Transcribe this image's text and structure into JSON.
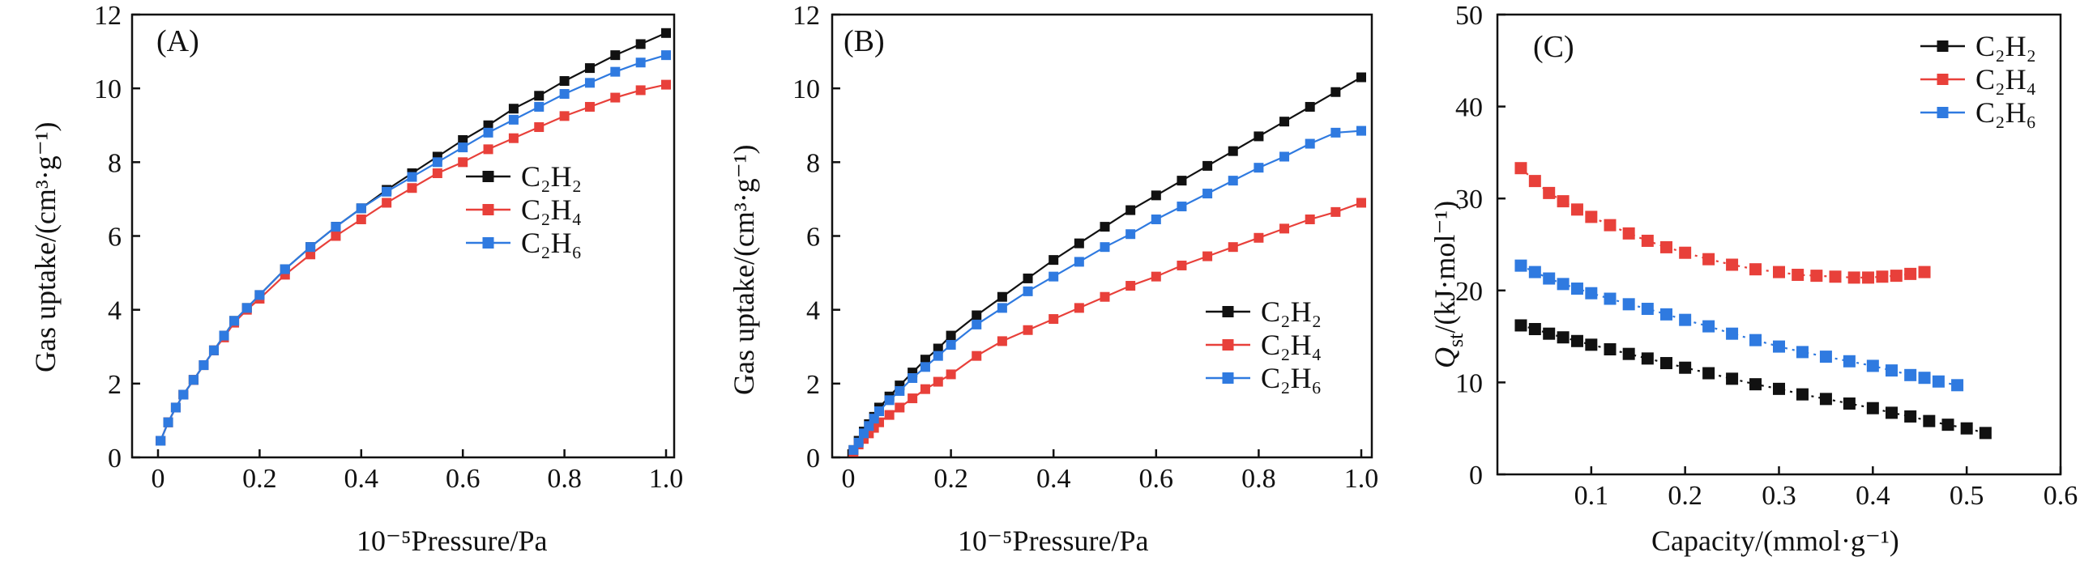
{
  "colors": {
    "C2H2": "#111111",
    "C2H4": "#e8403a",
    "C2H6": "#2f7ae0"
  },
  "chart_data": [
    {
      "type": "line",
      "panel_label": "(A)",
      "xlabel": "10⁻⁵Pressure/Pa",
      "ylabel": "Gas uptake/(cm³·g⁻¹)",
      "xlim": [
        0,
        1.0
      ],
      "ylim": [
        0,
        12
      ],
      "xticks": [
        "0",
        "0.2",
        "0.4",
        "0.6",
        "0.8",
        "1.0"
      ],
      "yticks": [
        "0",
        "2",
        "4",
        "6",
        "8",
        "10",
        "12"
      ],
      "legend_position": "center-right",
      "x": [
        0.005,
        0.02,
        0.035,
        0.05,
        0.07,
        0.09,
        0.11,
        0.13,
        0.15,
        0.175,
        0.2,
        0.25,
        0.3,
        0.35,
        0.4,
        0.45,
        0.5,
        0.55,
        0.6,
        0.65,
        0.7,
        0.75,
        0.8,
        0.85,
        0.9,
        0.95,
        1.0
      ],
      "series": [
        {
          "name": "C₂H₂",
          "key": "C2H2",
          "values": [
            0.45,
            0.95,
            1.35,
            1.7,
            2.1,
            2.5,
            2.9,
            3.3,
            3.7,
            4.05,
            4.4,
            5.1,
            5.7,
            6.25,
            6.75,
            7.25,
            7.7,
            8.15,
            8.6,
            9.0,
            9.45,
            9.8,
            10.2,
            10.55,
            10.9,
            11.2,
            11.5
          ]
        },
        {
          "name": "C₂H₄",
          "key": "C2H4",
          "values": [
            0.45,
            0.95,
            1.35,
            1.7,
            2.1,
            2.5,
            2.9,
            3.25,
            3.65,
            4.0,
            4.3,
            4.95,
            5.5,
            6.0,
            6.45,
            6.9,
            7.3,
            7.7,
            8.0,
            8.35,
            8.65,
            8.95,
            9.25,
            9.5,
            9.75,
            9.95,
            10.1
          ]
        },
        {
          "name": "C₂H₆",
          "key": "C2H6",
          "values": [
            0.45,
            0.95,
            1.35,
            1.7,
            2.1,
            2.5,
            2.9,
            3.3,
            3.7,
            4.05,
            4.4,
            5.1,
            5.7,
            6.25,
            6.75,
            7.2,
            7.6,
            8.0,
            8.4,
            8.8,
            9.15,
            9.5,
            9.85,
            10.15,
            10.45,
            10.7,
            10.9
          ]
        }
      ]
    },
    {
      "type": "line",
      "panel_label": "(B)",
      "xlabel": "10⁻⁵Pressure/Pa",
      "ylabel": "Gas uptake/(cm³·g⁻¹)",
      "xlim": [
        0,
        1.0
      ],
      "ylim": [
        0,
        12
      ],
      "xticks": [
        "0",
        "0.2",
        "0.4",
        "0.6",
        "0.8",
        "1.0"
      ],
      "yticks": [
        "0",
        "2",
        "4",
        "6",
        "8",
        "10",
        "12"
      ],
      "legend_position": "center-right",
      "x": [
        0.01,
        0.02,
        0.03,
        0.04,
        0.05,
        0.06,
        0.08,
        0.1,
        0.125,
        0.15,
        0.175,
        0.2,
        0.25,
        0.3,
        0.35,
        0.4,
        0.45,
        0.5,
        0.55,
        0.6,
        0.65,
        0.7,
        0.75,
        0.8,
        0.85,
        0.9,
        0.95,
        1.0
      ],
      "series": [
        {
          "name": "C₂H₂",
          "key": "C2H2",
          "values": [
            0.2,
            0.45,
            0.7,
            0.9,
            1.1,
            1.35,
            1.65,
            1.95,
            2.3,
            2.65,
            2.95,
            3.3,
            3.85,
            4.35,
            4.85,
            5.35,
            5.8,
            6.25,
            6.7,
            7.1,
            7.5,
            7.9,
            8.3,
            8.7,
            9.1,
            9.5,
            9.9,
            10.3
          ]
        },
        {
          "name": "C₂H₄",
          "key": "C2H4",
          "values": [
            0.15,
            0.35,
            0.5,
            0.65,
            0.8,
            0.95,
            1.15,
            1.35,
            1.6,
            1.85,
            2.05,
            2.25,
            2.75,
            3.15,
            3.45,
            3.75,
            4.05,
            4.35,
            4.65,
            4.9,
            5.2,
            5.45,
            5.7,
            5.95,
            6.2,
            6.45,
            6.65,
            6.9
          ]
        },
        {
          "name": "C₂H₆",
          "key": "C2H6",
          "values": [
            0.2,
            0.4,
            0.65,
            0.85,
            1.05,
            1.25,
            1.55,
            1.8,
            2.15,
            2.45,
            2.75,
            3.05,
            3.6,
            4.05,
            4.5,
            4.9,
            5.3,
            5.7,
            6.05,
            6.45,
            6.8,
            7.15,
            7.5,
            7.85,
            8.15,
            8.5,
            8.8,
            8.85
          ]
        }
      ]
    },
    {
      "type": "scatter",
      "panel_label": "(C)",
      "xlabel": "Capacity/(mmol·g⁻¹)",
      "ylabel_main": "Q",
      "ylabel_sub": "st",
      "ylabel_rest": "/(kJ·mol⁻¹)",
      "xlim": [
        0,
        0.6
      ],
      "ylim": [
        0,
        50
      ],
      "xticks": [
        "0.1",
        "0.2",
        "0.3",
        "0.4",
        "0.5",
        "0.6"
      ],
      "yticks": [
        "0",
        "10",
        "20",
        "30",
        "40",
        "50"
      ],
      "legend_position": "top-right",
      "series": [
        {
          "name": "C₂H₂",
          "key": "C2H2",
          "x": [
            0.025,
            0.04,
            0.055,
            0.07,
            0.085,
            0.1,
            0.12,
            0.14,
            0.16,
            0.18,
            0.2,
            0.225,
            0.25,
            0.275,
            0.3,
            0.325,
            0.35,
            0.375,
            0.4,
            0.42,
            0.44,
            0.46,
            0.48,
            0.5,
            0.52
          ],
          "y": [
            16.2,
            15.8,
            15.3,
            14.9,
            14.5,
            14.1,
            13.6,
            13.1,
            12.6,
            12.1,
            11.6,
            11.0,
            10.4,
            9.8,
            9.3,
            8.7,
            8.2,
            7.7,
            7.2,
            6.7,
            6.3,
            5.8,
            5.4,
            5.0,
            4.5
          ]
        },
        {
          "name": "C₂H₄",
          "key": "C2H4",
          "x": [
            0.025,
            0.04,
            0.055,
            0.07,
            0.085,
            0.1,
            0.12,
            0.14,
            0.16,
            0.18,
            0.2,
            0.225,
            0.25,
            0.275,
            0.3,
            0.32,
            0.34,
            0.36,
            0.38,
            0.395,
            0.41,
            0.425,
            0.44,
            0.455
          ],
          "y": [
            33.3,
            31.9,
            30.6,
            29.7,
            28.8,
            28.0,
            27.1,
            26.2,
            25.4,
            24.7,
            24.1,
            23.4,
            22.8,
            22.3,
            22.0,
            21.7,
            21.6,
            21.5,
            21.4,
            21.4,
            21.5,
            21.6,
            21.8,
            22.0
          ]
        },
        {
          "name": "C₂H₆",
          "key": "C2H6",
          "x": [
            0.025,
            0.04,
            0.055,
            0.07,
            0.085,
            0.1,
            0.12,
            0.14,
            0.16,
            0.18,
            0.2,
            0.225,
            0.25,
            0.275,
            0.3,
            0.325,
            0.35,
            0.375,
            0.4,
            0.42,
            0.44,
            0.455,
            0.47,
            0.49
          ],
          "y": [
            22.7,
            22.0,
            21.3,
            20.7,
            20.2,
            19.7,
            19.1,
            18.5,
            18.0,
            17.4,
            16.8,
            16.1,
            15.3,
            14.6,
            13.9,
            13.3,
            12.8,
            12.3,
            11.8,
            11.3,
            10.8,
            10.5,
            10.1,
            9.7
          ]
        }
      ]
    }
  ]
}
